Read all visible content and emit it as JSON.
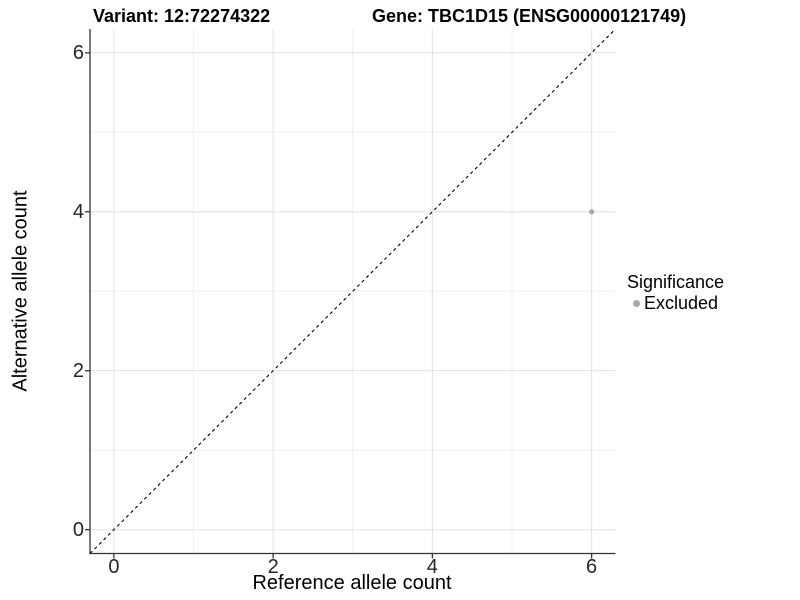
{
  "chart_data": {
    "type": "scatter",
    "title_left": "Variant: 12:72274322",
    "title_right": "Gene: TBC1D15 (ENSG00000121749)",
    "xlabel": "Reference allele count",
    "ylabel": "Alternative allele count",
    "xlim": [
      -0.3,
      6.3
    ],
    "ylim": [
      -0.3,
      6.3
    ],
    "xticks": [
      0,
      2,
      4,
      6
    ],
    "yticks": [
      0,
      2,
      4,
      6
    ],
    "xminor": [
      1,
      3,
      5
    ],
    "yminor": [
      1,
      3,
      5
    ],
    "grid": "on",
    "legend": {
      "title": "Significance",
      "position": "right",
      "entries": [
        {
          "label": "Excluded",
          "color": "#a8a8a8"
        }
      ]
    },
    "series": [
      {
        "name": "Excluded",
        "color": "#a8a8a8",
        "point_radius": 2.6,
        "points": [
          {
            "x": 6,
            "y": 4
          }
        ]
      }
    ],
    "reference_line": {
      "type": "identity",
      "slope": 1,
      "intercept": 0,
      "style": "dashed",
      "color": "#000000"
    },
    "colors": {
      "background": "#ffffff",
      "grid_major": "#e4e4e4",
      "grid_minor": "#efefef",
      "axis_line": "#333333",
      "tick_text": "#262626",
      "title_text": "#000000"
    }
  }
}
